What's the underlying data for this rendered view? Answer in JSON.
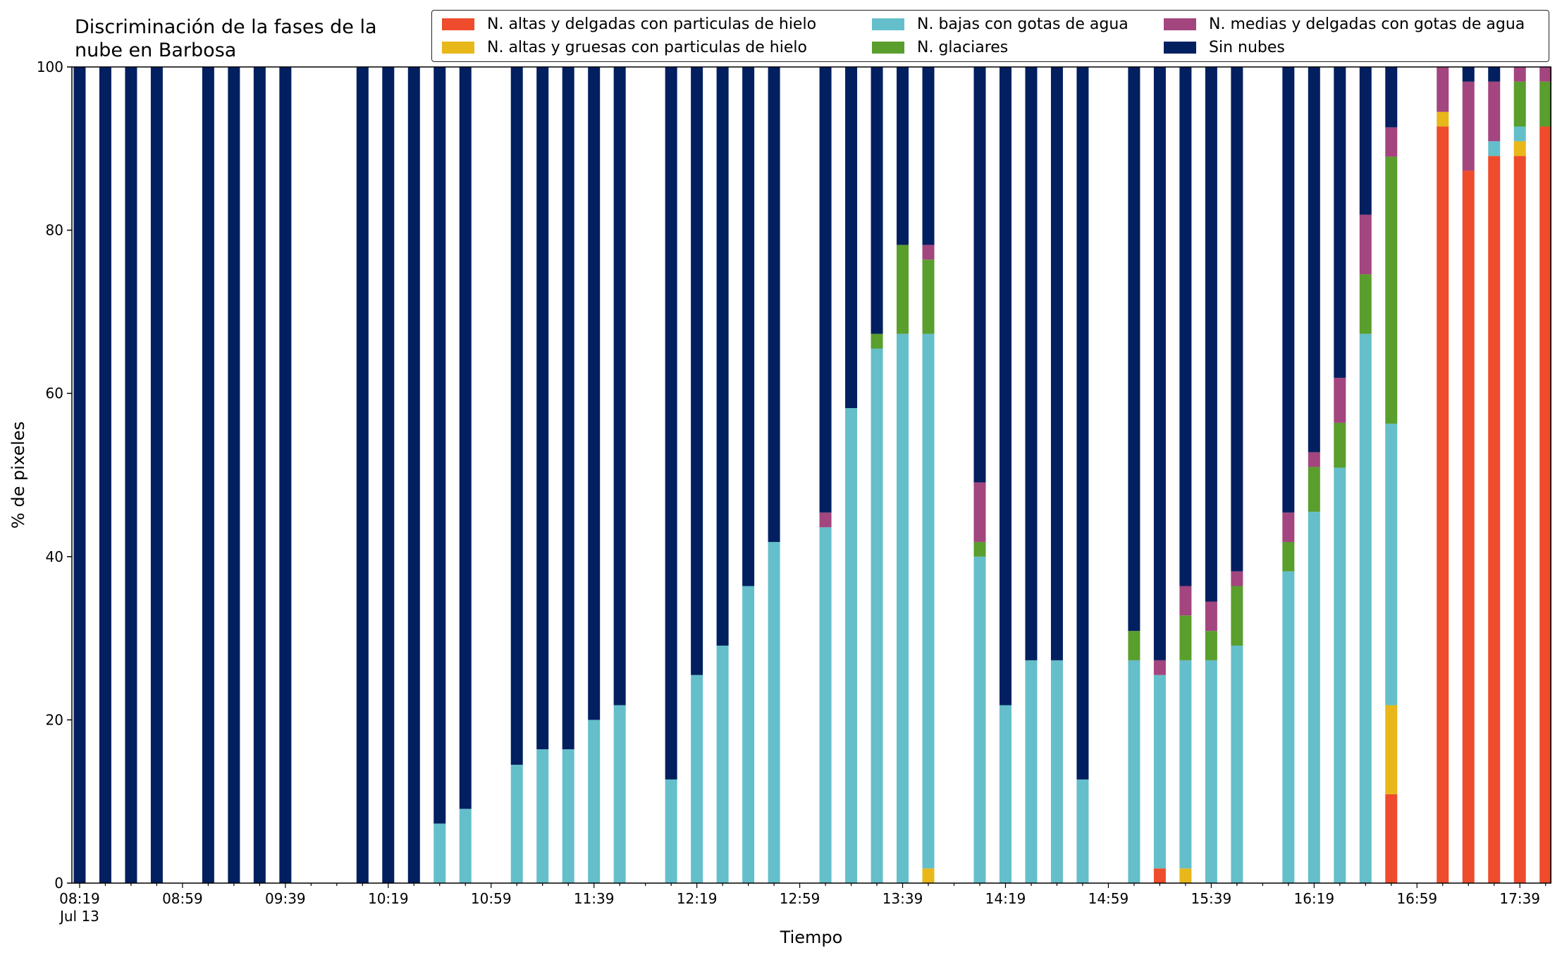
{
  "chart_data": {
    "type": "bar",
    "stacked": true,
    "title": "Discriminación de la fases de la nube en Barbosa",
    "title_lines": [
      "Discriminación de la fases de la",
      "nube en Barbosa"
    ],
    "xlabel": "Tiempo",
    "ylabel": "% de pixeles",
    "ylim": [
      0,
      100
    ],
    "yticks": [
      "0",
      "20",
      "40",
      "60",
      "80",
      "100"
    ],
    "xlim_minutes_after_0819": [
      -3,
      572
    ],
    "x_tick_labels": [
      "08:19",
      "08:59",
      "09:39",
      "10:19",
      "10:59",
      "11:39",
      "12:19",
      "12:59",
      "13:39",
      "14:19",
      "14:59",
      "15:39",
      "16:19",
      "16:59",
      "17:39"
    ],
    "x_date_label": "Jul 13",
    "legend_position": "top-right",
    "grid": false,
    "series": [
      {
        "key": "ha",
        "name": "N. altas y delgadas con particulas de hielo",
        "color": "#ee4c2c"
      },
      {
        "key": "hg",
        "name": "N. altas y gruesas con particulas de hielo",
        "color": "#e8b71a"
      },
      {
        "key": "b",
        "name": "N. bajas con gotas de agua",
        "color": "#64bfca"
      },
      {
        "key": "g",
        "name": "N. glaciares",
        "color": "#5a9e2d"
      },
      {
        "key": "m",
        "name": "N. medias y delgadas con gotas de agua",
        "color": "#a3457e"
      },
      {
        "key": "s",
        "name": "Sin nubes",
        "color": "#021f60"
      }
    ],
    "stack_order": [
      "ha",
      "hg",
      "b",
      "g",
      "m",
      "s"
    ],
    "legend_columns": [
      [
        "ha",
        "hg"
      ],
      [
        "b",
        "g"
      ],
      [
        "m",
        "s"
      ]
    ],
    "bars": [
      {
        "time": "08:19",
        "s": 100
      },
      {
        "time": "08:29",
        "s": 100
      },
      {
        "time": "08:39",
        "s": 100
      },
      {
        "time": "08:49",
        "s": 100
      },
      {
        "time": "09:09",
        "s": 100
      },
      {
        "time": "09:19",
        "s": 100
      },
      {
        "time": "09:29",
        "s": 100
      },
      {
        "time": "09:39",
        "s": 100
      },
      {
        "time": "10:09",
        "s": 100
      },
      {
        "time": "10:19",
        "s": 100
      },
      {
        "time": "10:29",
        "s": 100
      },
      {
        "time": "10:39",
        "b": 7.3,
        "s": 92.7
      },
      {
        "time": "10:49",
        "b": 9.1,
        "s": 90.9
      },
      {
        "time": "11:09",
        "b": 14.5,
        "s": 85.5
      },
      {
        "time": "11:19",
        "b": 16.4,
        "s": 83.6
      },
      {
        "time": "11:29",
        "b": 16.4,
        "s": 83.6
      },
      {
        "time": "11:39",
        "b": 20.0,
        "s": 80.0
      },
      {
        "time": "11:49",
        "b": 21.8,
        "s": 78.2
      },
      {
        "time": "12:09",
        "b": 12.7,
        "s": 87.3
      },
      {
        "time": "12:19",
        "b": 25.5,
        "s": 74.5
      },
      {
        "time": "12:29",
        "b": 29.1,
        "s": 70.9
      },
      {
        "time": "12:39",
        "b": 36.4,
        "s": 63.6
      },
      {
        "time": "12:49",
        "b": 41.8,
        "s": 58.2
      },
      {
        "time": "13:09",
        "b": 43.6,
        "m": 1.8,
        "s": 54.6
      },
      {
        "time": "13:19",
        "b": 58.2,
        "s": 41.8
      },
      {
        "time": "13:29",
        "b": 65.5,
        "g": 1.8,
        "s": 32.7
      },
      {
        "time": "13:39",
        "b": 67.3,
        "g": 10.9,
        "s": 21.8
      },
      {
        "time": "13:49",
        "hg": 1.8,
        "b": 65.5,
        "g": 9.1,
        "m": 1.8,
        "s": 21.8
      },
      {
        "time": "14:09",
        "b": 40.0,
        "g": 1.8,
        "m": 7.3,
        "s": 50.9
      },
      {
        "time": "14:19",
        "b": 21.8,
        "s": 78.2
      },
      {
        "time": "14:29",
        "b": 27.3,
        "s": 72.7
      },
      {
        "time": "14:39",
        "b": 27.3,
        "s": 72.7
      },
      {
        "time": "14:49",
        "b": 12.7,
        "s": 87.3
      },
      {
        "time": "15:09",
        "b": 27.3,
        "g": 3.6,
        "s": 69.1
      },
      {
        "time": "15:19",
        "ha": 1.8,
        "b": 23.7,
        "m": 1.8,
        "s": 72.7
      },
      {
        "time": "15:29",
        "hg": 1.8,
        "b": 25.5,
        "g": 5.5,
        "m": 3.6,
        "s": 63.6
      },
      {
        "time": "15:39",
        "b": 27.3,
        "g": 3.6,
        "m": 3.6,
        "s": 65.5
      },
      {
        "time": "15:49",
        "b": 29.1,
        "g": 7.3,
        "m": 1.8,
        "s": 61.8
      },
      {
        "time": "16:09",
        "b": 38.2,
        "g": 3.6,
        "m": 3.6,
        "s": 54.6
      },
      {
        "time": "16:19",
        "b": 45.5,
        "g": 5.5,
        "m": 1.8,
        "s": 47.2
      },
      {
        "time": "16:29",
        "b": 50.9,
        "g": 5.5,
        "m": 5.5,
        "s": 38.1
      },
      {
        "time": "16:39",
        "b": 67.3,
        "g": 7.3,
        "m": 7.3,
        "s": 18.1
      },
      {
        "time": "16:49",
        "ha": 10.9,
        "hg": 10.9,
        "b": 34.5,
        "g": 32.7,
        "m": 3.6,
        "s": 7.4
      },
      {
        "time": "17:09",
        "ha": 92.7,
        "hg": 1.8,
        "m": 5.5
      },
      {
        "time": "17:19",
        "ha": 87.3,
        "m": 10.9,
        "s": 1.8
      },
      {
        "time": "17:29",
        "ha": 89.1,
        "b": 1.8,
        "m": 7.3,
        "s": 1.8
      },
      {
        "time": "17:39",
        "ha": 89.1,
        "hg": 1.8,
        "b": 1.8,
        "g": 5.5,
        "m": 1.8
      },
      {
        "time": "17:49",
        "ha": 92.7,
        "g": 5.5,
        "m": 1.8
      }
    ]
  }
}
